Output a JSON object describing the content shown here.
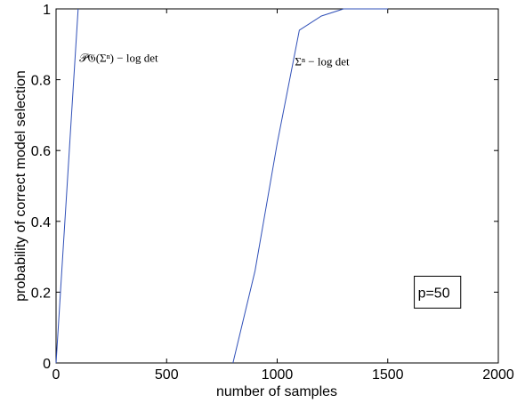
{
  "chart_data": {
    "type": "line",
    "xlabel": "number of samples",
    "ylabel": "probability of correct model selection",
    "xlim": [
      0,
      2000
    ],
    "ylim": [
      0,
      1
    ],
    "xticks": [
      "0",
      "500",
      "1000",
      "1500",
      "2000"
    ],
    "yticks": [
      "0",
      "0.2",
      "0.4",
      "0.6",
      "0.8",
      "1"
    ],
    "grid": false,
    "line_color": "#3050b8",
    "series": [
      {
        "name": "𝒫𝔊(Σⁿ) − log det",
        "x": [
          0,
          100
        ],
        "y": [
          0,
          1.0
        ]
      },
      {
        "name": "Σⁿ − log det",
        "x": [
          800,
          900,
          1000,
          1100,
          1200,
          1300,
          1500
        ],
        "y": [
          0,
          0.26,
          0.62,
          0.94,
          0.98,
          1.0,
          1.0
        ]
      }
    ],
    "annotations": [
      {
        "series": 0,
        "text": "𝒫𝔊(Σⁿ) − log det",
        "x": 105,
        "y": 0.85
      },
      {
        "series": 1,
        "text": "Σⁿ − log det",
        "x": 1080,
        "y": 0.84
      }
    ],
    "textbox": {
      "text": "p=50",
      "x_range": [
        1620,
        1830
      ],
      "y_range": [
        0.155,
        0.245
      ]
    }
  }
}
